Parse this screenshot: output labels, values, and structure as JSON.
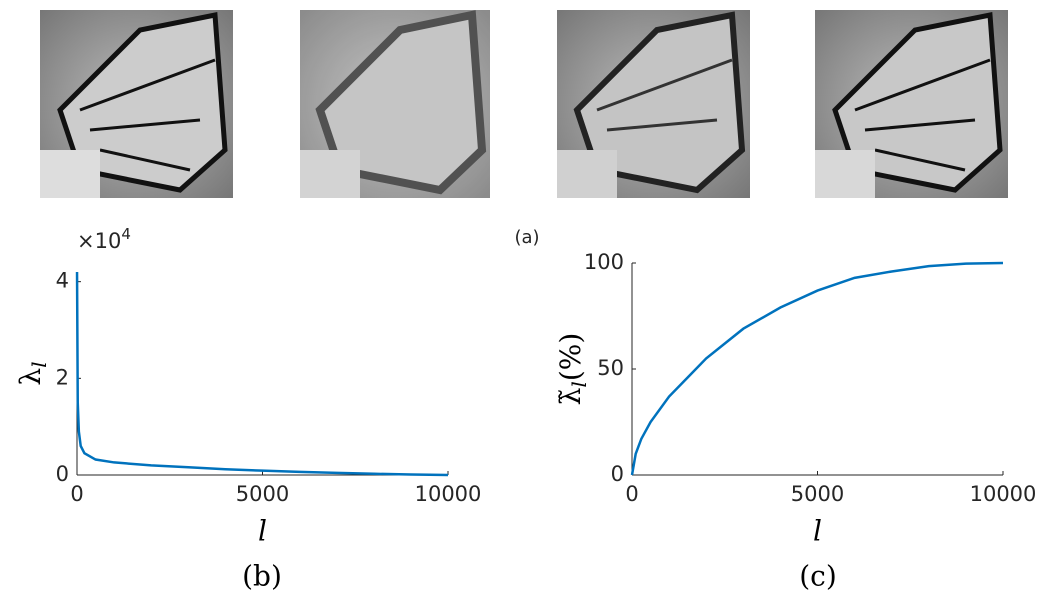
{
  "figure_label": "(a)",
  "chart_data": [
    {
      "type": "line",
      "caption": "(b)",
      "xlabel": "l",
      "ylabel": "λ",
      "ylabel_subscript": "l",
      "y_scale_base": "×10",
      "y_scale_exponent": "4",
      "xlim": [
        0,
        10000
      ],
      "xticks": [
        0,
        5000,
        10000
      ],
      "ylim": [
        0,
        42000
      ],
      "yticks": [
        0,
        {
          "value": 20000,
          "label": "2"
        },
        {
          "value": 40000,
          "label": "4"
        }
      ],
      "series": [
        {
          "color": "#0072bd",
          "x": [
            1,
            20,
            50,
            100,
            200,
            500,
            1000,
            2000,
            3000,
            4000,
            5000,
            6000,
            7000,
            8000,
            9000,
            10000
          ],
          "values": [
            42000,
            15000,
            9000,
            6000,
            4500,
            3200,
            2600,
            2000,
            1600,
            1200,
            900,
            650,
            450,
            250,
            100,
            0
          ]
        }
      ]
    },
    {
      "type": "line",
      "caption": "(c)",
      "xlabel": "l",
      "ylabel": "λ̃",
      "ylabel_subscript": "l",
      "ylabel_suffix": "(%)",
      "xlim": [
        0,
        10000
      ],
      "xticks": [
        0,
        5000,
        10000
      ],
      "ylim": [
        0,
        100
      ],
      "yticks": [
        0,
        50,
        100
      ],
      "series": [
        {
          "color": "#0072bd",
          "x": [
            0,
            100,
            250,
            500,
            1000,
            1500,
            2000,
            3000,
            4000,
            5000,
            6000,
            7000,
            8000,
            9000,
            10000
          ],
          "values": [
            0,
            10,
            17,
            25,
            37,
            46,
            55,
            69,
            79,
            87,
            93,
            96,
            98.5,
            99.7,
            100
          ]
        }
      ]
    }
  ]
}
